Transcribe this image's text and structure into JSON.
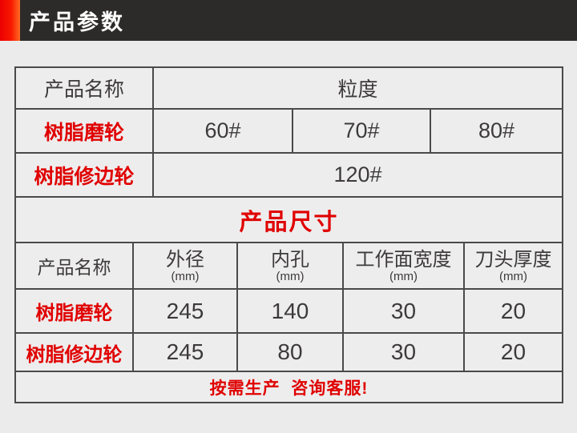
{
  "title_bar": {
    "title": "产品参数",
    "bg_color": "#2d2b2a",
    "accent_gradient": [
      "#ec0000",
      "#ff6a22"
    ]
  },
  "colors": {
    "red_text": "#e00000",
    "dark_text": "#3c3a3a",
    "border": "#4a4a4a",
    "page_bg": "#ebebeb",
    "cell_bg": "#eeeded"
  },
  "granularity_table": {
    "name_header": "产品名称",
    "value_header": "粒度",
    "rows": [
      {
        "name": "树脂磨轮",
        "values": [
          "60#",
          "70#",
          "80#"
        ]
      },
      {
        "name": "树脂修边轮",
        "values": [
          "120#"
        ]
      }
    ]
  },
  "size_section_title": "产品尺寸",
  "size_table": {
    "name_header": "产品名称",
    "headers": [
      {
        "label": "外径",
        "unit": "(mm)"
      },
      {
        "label": "内孔",
        "unit": "(mm)"
      },
      {
        "label": "工作面宽度",
        "unit": "(mm)"
      },
      {
        "label": "刀头厚度",
        "unit": "(mm)"
      }
    ],
    "rows": [
      {
        "name": "树脂磨轮",
        "values": [
          "245",
          "140",
          "30",
          "20"
        ]
      },
      {
        "name": "树脂修边轮",
        "values": [
          "245",
          "80",
          "30",
          "20"
        ]
      }
    ]
  },
  "footer_note": "按需生产  咨询客服!"
}
